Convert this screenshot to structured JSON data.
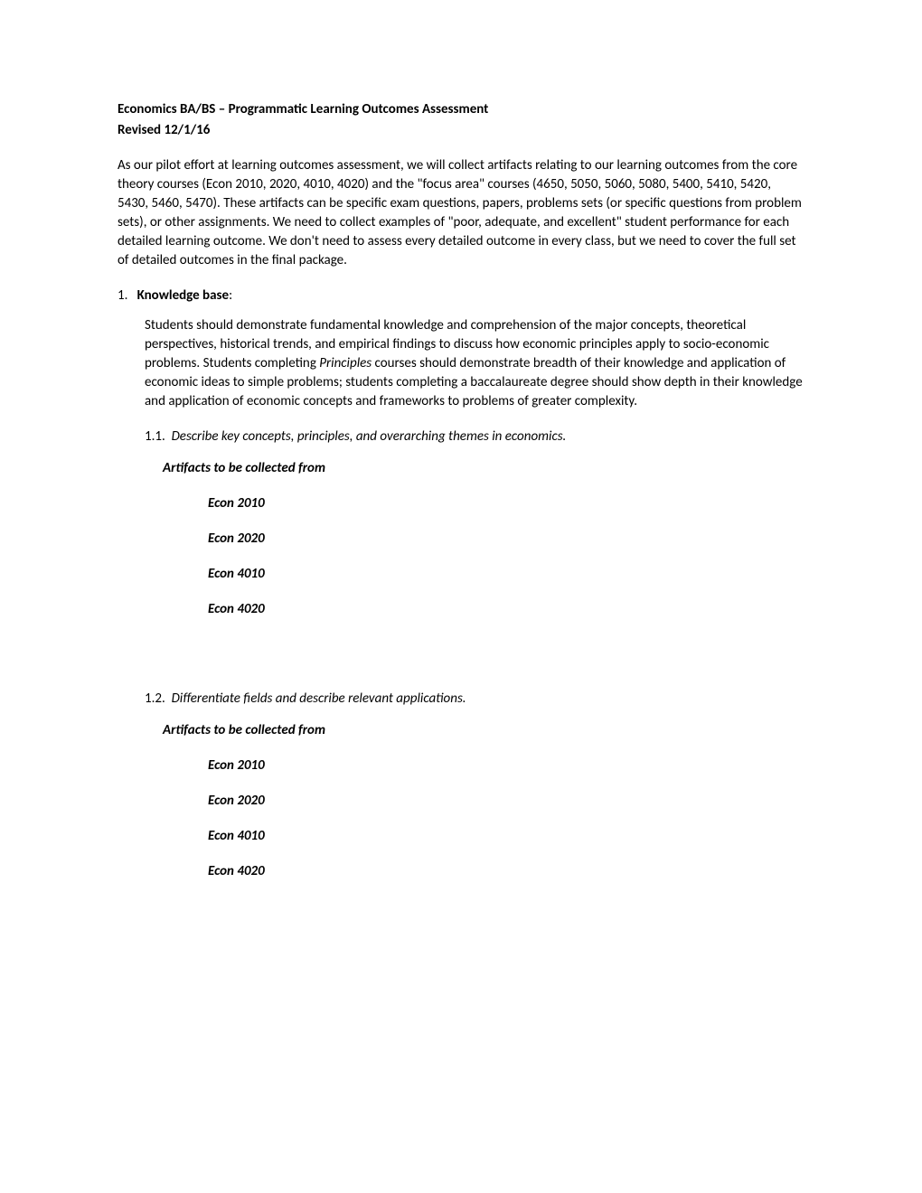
{
  "title": {
    "line1": "Economics BA/BS – Programmatic Learning Outcomes Assessment",
    "line2": "Revised 12/1/16"
  },
  "intro": "As our pilot effort at learning outcomes assessment, we will collect artifacts relating to our learning outcomes from the core theory courses (Econ 2010, 2020, 4010, 4020) and the \"focus area\" courses (4650, 5050, 5060, 5080, 5400, 5410, 5420, 5430, 5460, 5470).  These artifacts can be specific exam questions, papers, problems sets (or specific questions from problem sets), or other assignments.  We need to collect examples of \"poor, adequate, and excellent\" student performance for each detailed learning outcome.  We don't need to assess every detailed outcome in every class, but we need to cover the full set of detailed outcomes in the final package.",
  "section1": {
    "number": "1.",
    "title": "Knowledge base",
    "colon": ":",
    "body_part1": "Students should demonstrate fundamental knowledge and comprehension of the major concepts, theoretical perspectives, historical trends, and empirical findings to discuss how economic principles apply to socio-economic problems. Students completing ",
    "body_italic": "Principles",
    "body_part2": " courses should demonstrate breadth of their knowledge and application of economic ideas to simple problems; students completing a baccalaureate degree should show depth in their knowledge and application of economic concepts and frameworks to problems of greater complexity."
  },
  "sub11": {
    "number": "1.1.",
    "text": "Describe key concepts, principles, and overarching themes in economics.",
    "artifacts_label": "Artifacts to be collected from",
    "courses": [
      "Econ 2010",
      "Econ 2020",
      "Econ 4010",
      "Econ 4020"
    ]
  },
  "sub12": {
    "number": "1.2.",
    "text": "Differentiate fields and describe relevant applications.",
    "artifacts_label": "Artifacts to be collected from",
    "courses": [
      "Econ 2010",
      "Econ 2020",
      "Econ 4010",
      "Econ 4020"
    ]
  }
}
